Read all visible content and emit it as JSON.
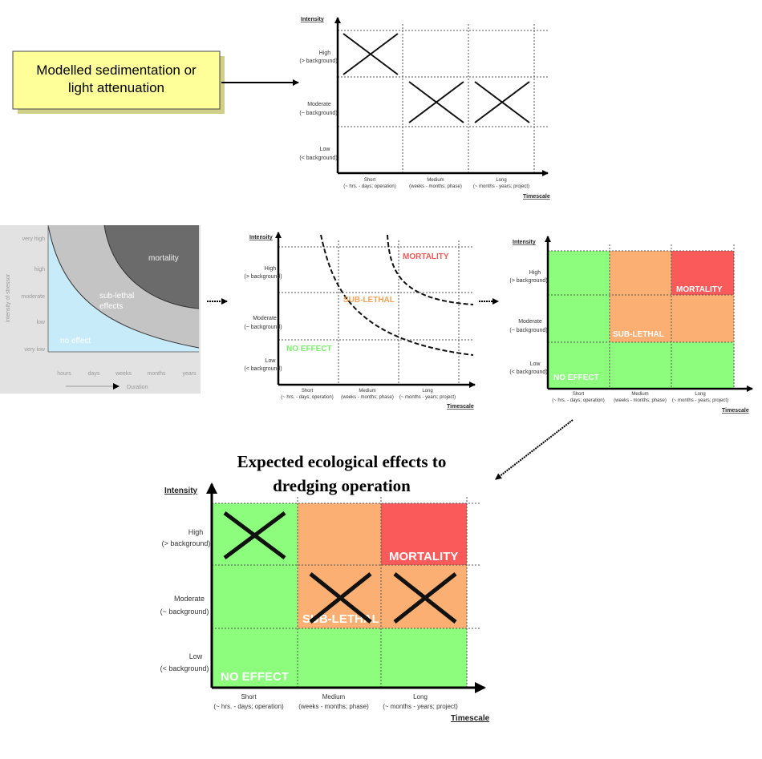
{
  "model_box": {
    "line1": "Modelled sedimentation or",
    "line2": "light attenuation"
  },
  "matrix_labels": {
    "intensity": "Intensity",
    "timescale": "Timescale",
    "high": "High",
    "high_sub": "(> background)",
    "moderate": "Moderate",
    "moderate_sub": "(~ background)",
    "low": "Low",
    "low_sub": "(< background)",
    "short": "Short",
    "short_sub": "(~ hrs. - days; operation)",
    "medium": "Medium",
    "medium_sub": "(weeks - months; phase)",
    "long": "Long",
    "long_sub": "(~ months - years; project)"
  },
  "zones": {
    "mortality": "MORTALITY",
    "sublethal": "SUB-LETHAL",
    "noeffect": "NO EFFECT"
  },
  "stress_graph": {
    "ylabel": "intensity of stressor",
    "xlabel": "Duration",
    "yticks": [
      "very high",
      "high",
      "moderate",
      "low",
      "very low"
    ],
    "xticks": [
      "hours",
      "days",
      "weeks",
      "months",
      "years"
    ],
    "regions": {
      "mortality": "mortality",
      "sublethal1": "sub-lethal",
      "sublethal2": "effects",
      "noeffect": "no effect"
    }
  },
  "bottom_title": {
    "line1": "Expected ecological effects to",
    "line2": "dredging operation"
  },
  "colors": {
    "green": "#8cfd7c",
    "orange": "#fbaf72",
    "red": "#fb5a5a",
    "yellow_box": "#ffff99",
    "light_blue": "#c7ebf9",
    "grey": "#c4c4c4",
    "dark_grey": "#6b6b6b"
  }
}
